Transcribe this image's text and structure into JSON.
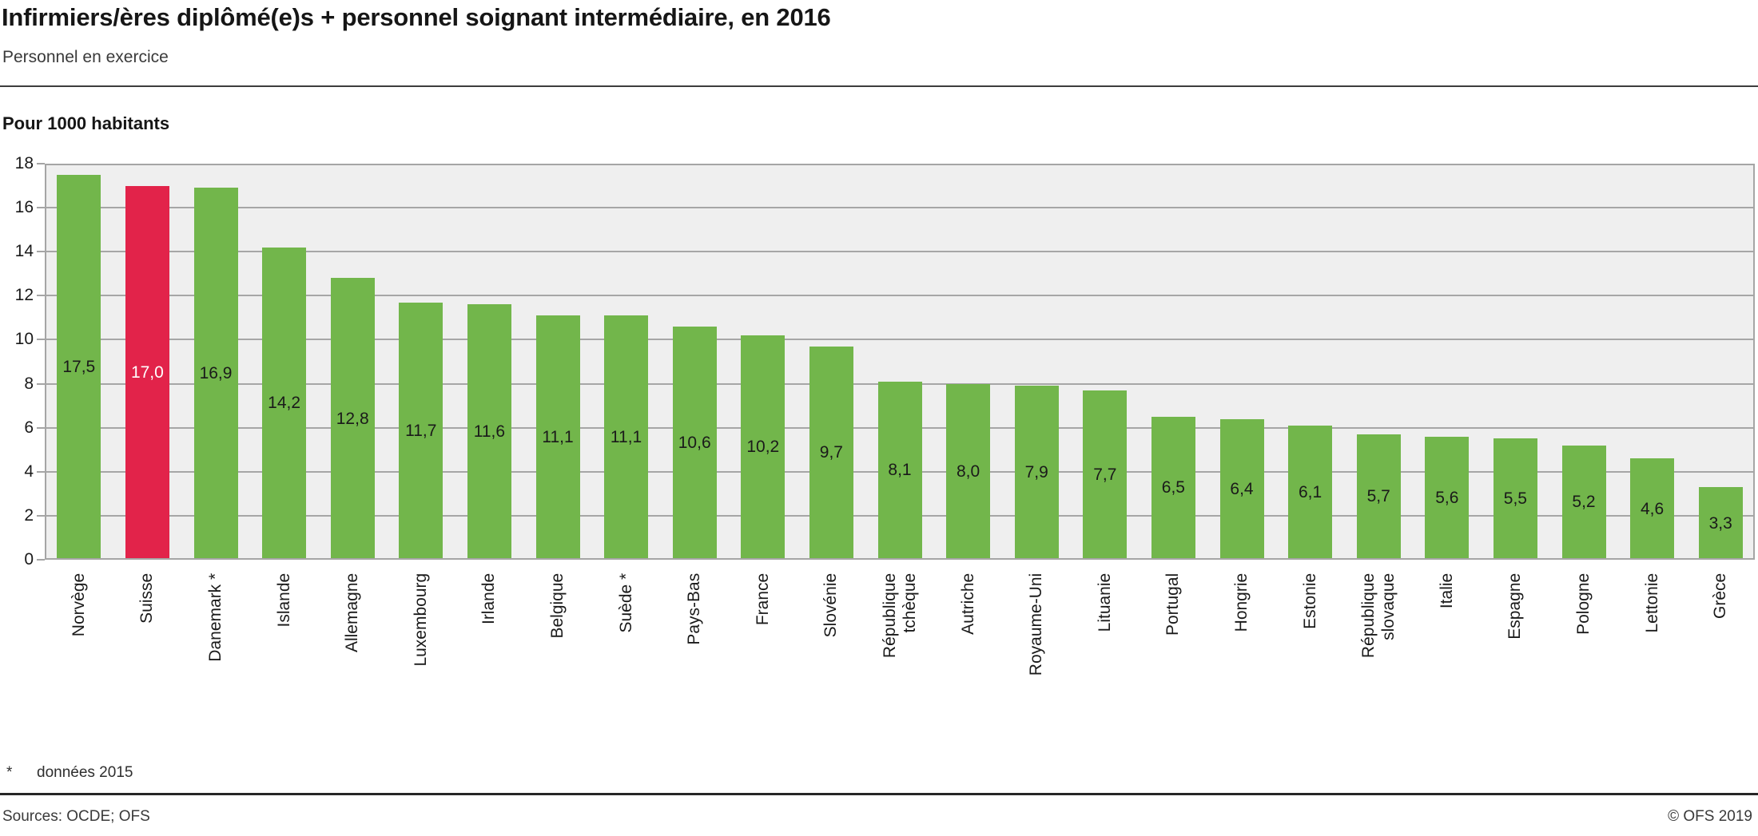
{
  "header": {
    "title": "Infirmiers/ères diplômé(e)s + personnel soignant intermédiaire, en 2016",
    "subtitle": "Personnel en exercice"
  },
  "axis": {
    "ylabel": "Pour 1000 habitants",
    "yticks": [
      "18",
      "16",
      "14",
      "12",
      "10",
      "8",
      "6",
      "4",
      "2",
      "0"
    ]
  },
  "chart_data": {
    "type": "bar",
    "title": "Infirmiers/ères diplômé(e)s + personnel soignant intermédiaire, en 2016",
    "subtitle": "Personnel en exercice",
    "ylabel": "Pour 1000 habitants",
    "ylim": [
      0,
      18
    ],
    "ytick_step": 2,
    "grid": true,
    "legend": false,
    "categories": [
      "Norvège",
      "Suisse",
      "Danemark *",
      "Islande",
      "Allemagne",
      "Luxembourg",
      "Irlande",
      "Belgique",
      "Suède *",
      "Pays-Bas",
      "France",
      "Slovénie",
      "République tchèque",
      "Autriche",
      "Royaume-Uni",
      "Lituanie",
      "Portugal",
      "Hongrie",
      "Estonie",
      "République slovaque",
      "Italie",
      "Espagne",
      "Pologne",
      "Lettonie",
      "Grèce"
    ],
    "category_lines": [
      [
        "Norvège"
      ],
      [
        "Suisse"
      ],
      [
        "Danemark *"
      ],
      [
        "Islande"
      ],
      [
        "Allemagne"
      ],
      [
        "Luxembourg"
      ],
      [
        "Irlande"
      ],
      [
        "Belgique"
      ],
      [
        "Suède *"
      ],
      [
        "Pays-Bas"
      ],
      [
        "France"
      ],
      [
        "Slovénie"
      ],
      [
        "République",
        "tchèque"
      ],
      [
        "Autriche"
      ],
      [
        "Royaume-Uni"
      ],
      [
        "Lituanie"
      ],
      [
        "Portugal"
      ],
      [
        "Hongrie"
      ],
      [
        "Estonie"
      ],
      [
        "République",
        "slovaque"
      ],
      [
        "Italie"
      ],
      [
        "Espagne"
      ],
      [
        "Pologne"
      ],
      [
        "Lettonie"
      ],
      [
        "Grèce"
      ]
    ],
    "values": [
      17.5,
      17.0,
      16.9,
      14.2,
      12.8,
      11.7,
      11.6,
      11.1,
      11.1,
      10.6,
      10.2,
      9.7,
      8.1,
      8.0,
      7.9,
      7.7,
      6.5,
      6.4,
      6.1,
      5.7,
      5.6,
      5.5,
      5.2,
      4.6,
      3.3
    ],
    "value_labels": [
      "17,5",
      "17,0",
      "16,9",
      "14,2",
      "12,8",
      "11,7",
      "11,6",
      "11,1",
      "11,1",
      "10,6",
      "10,2",
      "9,7",
      "8,1",
      "8,0",
      "7,9",
      "7,7",
      "6,5",
      "6,4",
      "6,1",
      "5,7",
      "5,6",
      "5,5",
      "5,2",
      "4,6",
      "3,3"
    ],
    "highlight_index": 1,
    "bar_color": "#72b64b",
    "highlight_color": "#e2234a",
    "value_label_color": "#1a1a1a",
    "highlight_value_label_color": "#ffffff"
  },
  "footnote": {
    "marker": "*",
    "text": "données 2015"
  },
  "footer": {
    "sources": "Sources: OCDE; OFS",
    "copyright": "© OFS 2019"
  },
  "colors": {
    "bar_green": "#72b64b",
    "bar_red": "#e2234a",
    "plot_background": "#efefef",
    "grid": "#a6a6a6",
    "text": "#1a1a1a"
  }
}
